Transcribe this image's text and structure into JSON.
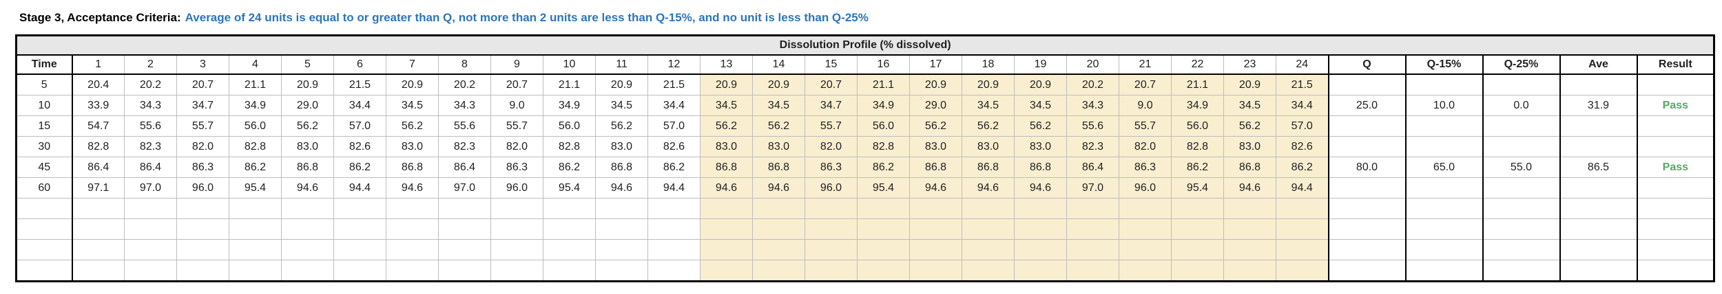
{
  "title": {
    "prefix": "Stage 3, Acceptance Criteria:",
    "criteria": "Average of 24 units is equal to or greater than Q, not more than 2 units are less than Q-15%, and no unit is less than Q-25%"
  },
  "colors": {
    "criteria_blue": "#2E75B6",
    "pass_green": "#57A768",
    "unit_highlight": "#F9EED0",
    "band_gray": "#E7E7E7"
  },
  "table": {
    "merged_header": "Dissolution Profile (% dissolved)",
    "columns": {
      "time": "Time",
      "units": [
        "1",
        "2",
        "3",
        "4",
        "5",
        "6",
        "7",
        "8",
        "9",
        "10",
        "11",
        "12",
        "13",
        "14",
        "15",
        "16",
        "17",
        "18",
        "19",
        "20",
        "21",
        "22",
        "23",
        "24"
      ],
      "summary": [
        "Q",
        "Q-15%",
        "Q-25%",
        "Ave",
        "Result"
      ]
    },
    "highlight_from_unit": 13,
    "rows": [
      {
        "time": "5",
        "units": [
          "20.4",
          "20.2",
          "20.7",
          "21.1",
          "20.9",
          "21.5",
          "20.9",
          "20.2",
          "20.7",
          "21.1",
          "20.9",
          "21.5",
          "20.9",
          "20.9",
          "20.7",
          "21.1",
          "20.9",
          "20.9",
          "20.9",
          "20.2",
          "20.7",
          "21.1",
          "20.9",
          "21.5"
        ],
        "q": "",
        "q15": "",
        "q25": "",
        "ave": "",
        "result": ""
      },
      {
        "time": "10",
        "units": [
          "33.9",
          "34.3",
          "34.7",
          "34.9",
          "29.0",
          "34.4",
          "34.5",
          "34.3",
          "9.0",
          "34.9",
          "34.5",
          "34.4",
          "34.5",
          "34.5",
          "34.7",
          "34.9",
          "29.0",
          "34.5",
          "34.5",
          "34.3",
          "9.0",
          "34.9",
          "34.5",
          "34.4"
        ],
        "q": "25.0",
        "q15": "10.0",
        "q25": "0.0",
        "ave": "31.9",
        "result": "Pass"
      },
      {
        "time": "15",
        "units": [
          "54.7",
          "55.6",
          "55.7",
          "56.0",
          "56.2",
          "57.0",
          "56.2",
          "55.6",
          "55.7",
          "56.0",
          "56.2",
          "57.0",
          "56.2",
          "56.2",
          "55.7",
          "56.0",
          "56.2",
          "56.2",
          "56.2",
          "55.6",
          "55.7",
          "56.0",
          "56.2",
          "57.0"
        ],
        "q": "",
        "q15": "",
        "q25": "",
        "ave": "",
        "result": ""
      },
      {
        "time": "30",
        "units": [
          "82.8",
          "82.3",
          "82.0",
          "82.8",
          "83.0",
          "82.6",
          "83.0",
          "82.3",
          "82.0",
          "82.8",
          "83.0",
          "82.6",
          "83.0",
          "83.0",
          "82.0",
          "82.8",
          "83.0",
          "83.0",
          "83.0",
          "82.3",
          "82.0",
          "82.8",
          "83.0",
          "82.6"
        ],
        "q": "",
        "q15": "",
        "q25": "",
        "ave": "",
        "result": ""
      },
      {
        "time": "45",
        "units": [
          "86.4",
          "86.4",
          "86.3",
          "86.2",
          "86.8",
          "86.2",
          "86.8",
          "86.4",
          "86.3",
          "86.2",
          "86.8",
          "86.2",
          "86.8",
          "86.8",
          "86.3",
          "86.2",
          "86.8",
          "86.8",
          "86.8",
          "86.4",
          "86.3",
          "86.2",
          "86.8",
          "86.2"
        ],
        "q": "80.0",
        "q15": "65.0",
        "q25": "55.0",
        "ave": "86.5",
        "result": "Pass"
      },
      {
        "time": "60",
        "units": [
          "97.1",
          "97.0",
          "96.0",
          "95.4",
          "94.6",
          "94.4",
          "94.6",
          "97.0",
          "96.0",
          "95.4",
          "94.6",
          "94.4",
          "94.6",
          "94.6",
          "96.0",
          "95.4",
          "94.6",
          "94.6",
          "94.6",
          "97.0",
          "96.0",
          "95.4",
          "94.6",
          "94.4"
        ],
        "q": "",
        "q15": "",
        "q25": "",
        "ave": "",
        "result": ""
      },
      {
        "time": "",
        "units": [],
        "q": "",
        "q15": "",
        "q25": "",
        "ave": "",
        "result": ""
      },
      {
        "time": "",
        "units": [],
        "q": "",
        "q15": "",
        "q25": "",
        "ave": "",
        "result": ""
      },
      {
        "time": "",
        "units": [],
        "q": "",
        "q15": "",
        "q25": "",
        "ave": "",
        "result": ""
      },
      {
        "time": "",
        "units": [],
        "q": "",
        "q15": "",
        "q25": "",
        "ave": "",
        "result": ""
      }
    ]
  }
}
